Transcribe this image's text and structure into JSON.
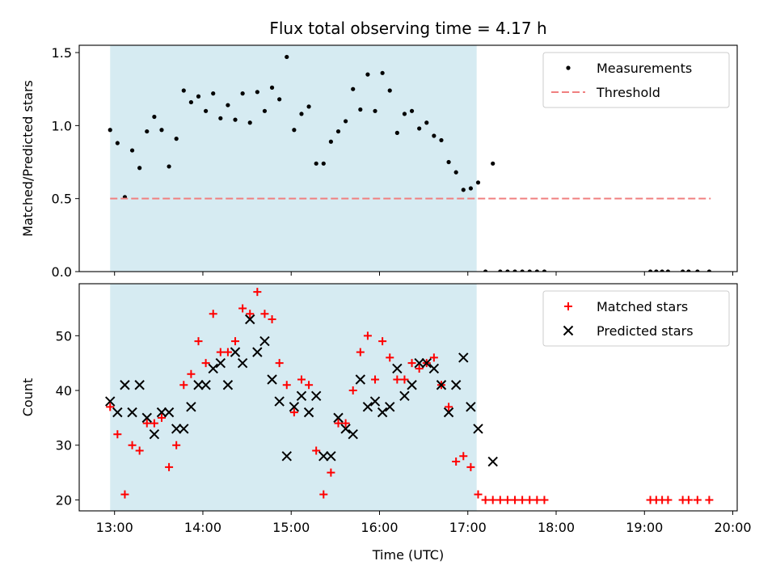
{
  "chart_data": [
    {
      "type": "scatter",
      "title": "Flux total observing time = 4.17 h",
      "xlabel": "",
      "ylabel": "Matched/Predicted stars",
      "xlim_hours": [
        12.6,
        20.05
      ],
      "ylim": [
        0,
        1.55
      ],
      "yticks": [
        0.0,
        0.5,
        1.0,
        1.5
      ],
      "ytick_labels": [
        "0.0",
        "0.5",
        "1.0",
        "1.5"
      ],
      "shaded_interval": {
        "start": "12:57",
        "end": "17:06",
        "color": "#add8e6"
      },
      "legend": {
        "placement": "top-right",
        "entries": [
          "Measurements",
          "Threshold"
        ]
      },
      "series": [
        {
          "name": "Measurements",
          "marker": "dot",
          "color": "#000000",
          "x": [
            "12:57",
            "13:02",
            "13:07",
            "13:12",
            "13:17",
            "13:22",
            "13:27",
            "13:32",
            "13:37",
            "13:42",
            "13:47",
            "13:52",
            "13:57",
            "14:02",
            "14:07",
            "14:12",
            "14:17",
            "14:22",
            "14:27",
            "14:32",
            "14:37",
            "14:42",
            "14:47",
            "14:52",
            "14:57",
            "15:02",
            "15:07",
            "15:12",
            "15:17",
            "15:22",
            "15:27",
            "15:32",
            "15:37",
            "15:42",
            "15:47",
            "15:52",
            "15:57",
            "16:02",
            "16:07",
            "16:12",
            "16:17",
            "16:22",
            "16:27",
            "16:32",
            "16:37",
            "16:42",
            "16:47",
            "16:52",
            "16:57",
            "17:02",
            "17:07",
            "17:12",
            "17:17",
            "17:22",
            "17:27",
            "17:32",
            "17:37",
            "17:42",
            "17:47",
            "17:52",
            "19:04",
            "19:08",
            "19:12",
            "19:16",
            "19:26",
            "19:30",
            "19:36",
            "19:44"
          ],
          "y": [
            0.97,
            0.88,
            0.51,
            0.83,
            0.71,
            0.96,
            1.06,
            0.97,
            0.72,
            0.91,
            1.24,
            1.16,
            1.2,
            1.1,
            1.22,
            1.05,
            1.14,
            1.04,
            1.22,
            1.02,
            1.23,
            1.1,
            1.26,
            1.18,
            1.47,
            0.97,
            1.08,
            1.13,
            0.74,
            0.74,
            0.89,
            0.96,
            1.03,
            1.25,
            1.11,
            1.35,
            1.1,
            1.36,
            1.24,
            0.95,
            1.08,
            1.1,
            0.98,
            1.02,
            0.93,
            0.9,
            0.75,
            0.68,
            0.56,
            0.57,
            0.61,
            0.0,
            0.74,
            0.0,
            0.0,
            0.0,
            0.0,
            0.0,
            0.0,
            0.0,
            0.0,
            0.0,
            0.0,
            0.0,
            0.0,
            0.0,
            0.0,
            0.0
          ]
        },
        {
          "name": "Threshold",
          "marker": "dashed-line",
          "color": "#f08080",
          "x": [
            "12:57",
            "19:45"
          ],
          "y": [
            0.5,
            0.5
          ]
        }
      ]
    },
    {
      "type": "scatter",
      "title": "",
      "xlabel": "Time (UTC)",
      "ylabel": "Count",
      "xlim_hours": [
        12.6,
        20.05
      ],
      "ylim": [
        18,
        59.5
      ],
      "yticks": [
        20,
        30,
        40,
        50
      ],
      "ytick_labels": [
        "20",
        "30",
        "40",
        "50"
      ],
      "xtick_labels": [
        "13:00",
        "14:00",
        "15:00",
        "16:00",
        "17:00",
        "18:00",
        "19:00",
        "20:00"
      ],
      "shaded_interval": {
        "start": "12:57",
        "end": "17:06",
        "color": "#add8e6"
      },
      "legend": {
        "placement": "top-right",
        "entries": [
          "Matched stars",
          "Predicted stars"
        ]
      },
      "series": [
        {
          "name": "Matched stars",
          "marker": "plus",
          "color": "#ff0000",
          "x": [
            "12:57",
            "13:02",
            "13:07",
            "13:12",
            "13:17",
            "13:22",
            "13:27",
            "13:32",
            "13:37",
            "13:42",
            "13:47",
            "13:52",
            "13:57",
            "14:02",
            "14:07",
            "14:12",
            "14:17",
            "14:22",
            "14:27",
            "14:32",
            "14:37",
            "14:42",
            "14:47",
            "14:52",
            "14:57",
            "15:02",
            "15:07",
            "15:12",
            "15:17",
            "15:22",
            "15:27",
            "15:32",
            "15:37",
            "15:42",
            "15:47",
            "15:52",
            "15:57",
            "16:02",
            "16:07",
            "16:12",
            "16:17",
            "16:22",
            "16:27",
            "16:32",
            "16:37",
            "16:42",
            "16:47",
            "16:52",
            "16:57",
            "17:02",
            "17:07",
            "17:12",
            "17:17",
            "17:22",
            "17:27",
            "17:32",
            "17:37",
            "17:42",
            "17:47",
            "17:52",
            "19:04",
            "19:08",
            "19:12",
            "19:16",
            "19:26",
            "19:30",
            "19:36",
            "19:44"
          ],
          "y": [
            37,
            32,
            21,
            30,
            29,
            34,
            34,
            35,
            26,
            30,
            41,
            43,
            49,
            45,
            54,
            47,
            47,
            49,
            55,
            54,
            58,
            54,
            53,
            45,
            41,
            36,
            42,
            41,
            29,
            21,
            25,
            34,
            34,
            40,
            47,
            50,
            42,
            49,
            46,
            42,
            42,
            45,
            44,
            45,
            46,
            41,
            37,
            27,
            28,
            26,
            21,
            20,
            20,
            20,
            20,
            20,
            20,
            20,
            20,
            20,
            20,
            20,
            20,
            20,
            20,
            20,
            20,
            20
          ]
        },
        {
          "name": "Predicted stars",
          "marker": "x",
          "color": "#000000",
          "x": [
            "12:57",
            "13:02",
            "13:07",
            "13:12",
            "13:17",
            "13:22",
            "13:27",
            "13:32",
            "13:37",
            "13:42",
            "13:47",
            "13:52",
            "13:57",
            "14:02",
            "14:07",
            "14:12",
            "14:17",
            "14:22",
            "14:27",
            "14:32",
            "14:37",
            "14:42",
            "14:47",
            "14:52",
            "14:57",
            "15:02",
            "15:07",
            "15:12",
            "15:17",
            "15:22",
            "15:27",
            "15:32",
            "15:37",
            "15:42",
            "15:47",
            "15:52",
            "15:57",
            "16:02",
            "16:07",
            "16:12",
            "16:17",
            "16:22",
            "16:27",
            "16:32",
            "16:37",
            "16:42",
            "16:47",
            "16:52",
            "16:57",
            "17:02",
            "17:07",
            "17:17"
          ],
          "y": [
            38,
            36,
            41,
            36,
            41,
            35,
            32,
            36,
            36,
            33,
            33,
            37,
            41,
            41,
            44,
            45,
            41,
            47,
            45,
            53,
            47,
            49,
            42,
            38,
            28,
            37,
            39,
            36,
            39,
            28,
            28,
            35,
            33,
            32,
            42,
            37,
            38,
            36,
            37,
            44,
            39,
            41,
            45,
            45,
            44,
            41,
            36,
            41,
            46,
            37,
            33,
            27
          ]
        }
      ]
    }
  ]
}
